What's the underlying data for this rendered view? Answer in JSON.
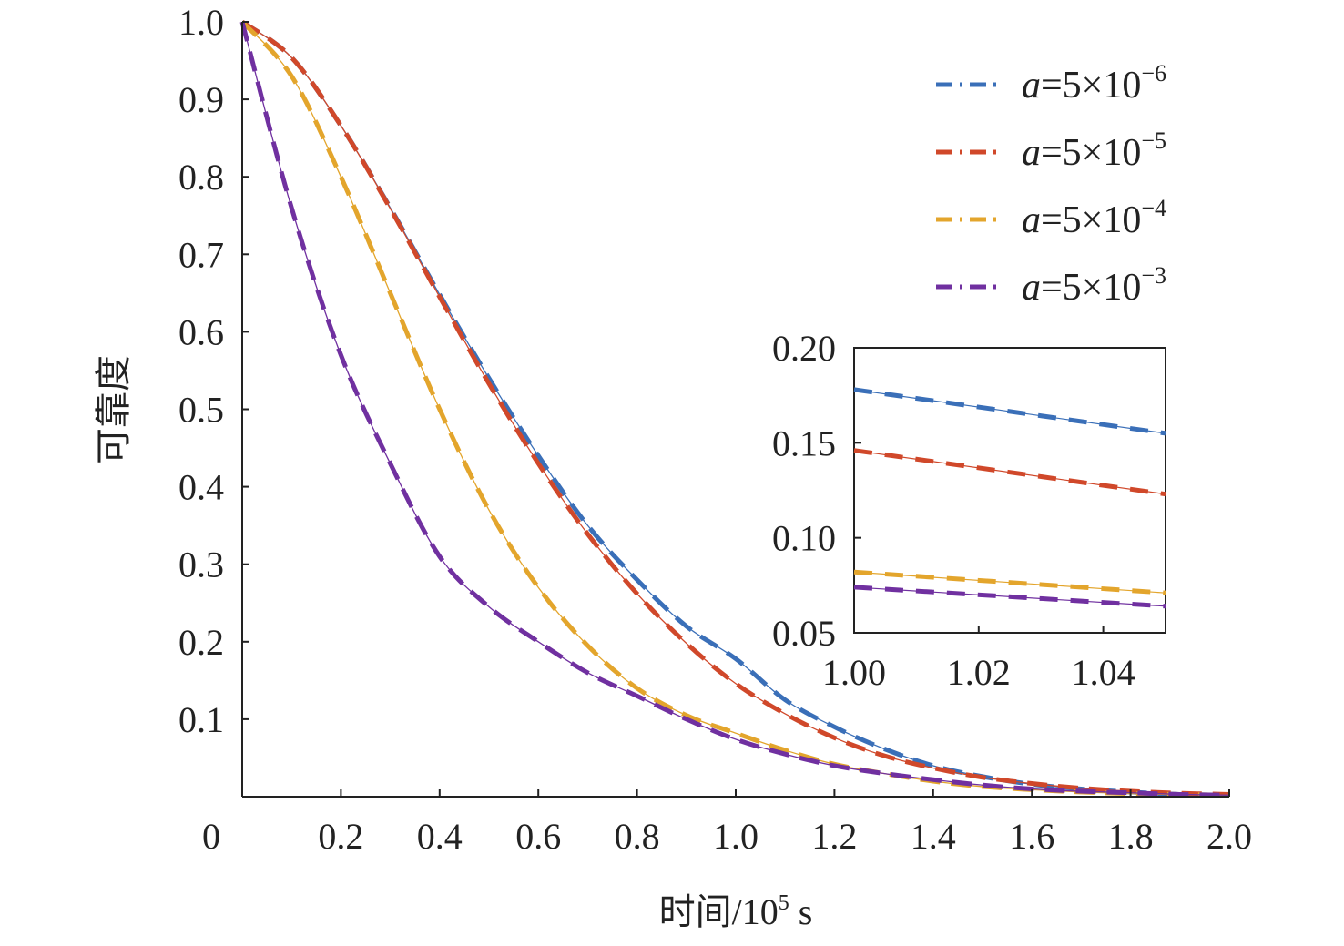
{
  "chart_data": {
    "type": "line",
    "title": "",
    "xlabel": "时间/10",
    "xlabel_sup": "5",
    "xlabel_unit": " s",
    "ylabel": "可靠度",
    "xlim": [
      0,
      2.0
    ],
    "ylim": [
      0,
      1.0
    ],
    "xticks": [
      "0",
      "0.2",
      "0.4",
      "0.6",
      "0.8",
      "1.0",
      "1.2",
      "1.4",
      "1.6",
      "1.8",
      "2.0"
    ],
    "yticks": [
      "0.1",
      "0.2",
      "0.3",
      "0.4",
      "0.5",
      "0.6",
      "0.7",
      "0.8",
      "0.9",
      "1.0"
    ],
    "grid": false,
    "legend_position": "top-right",
    "x": [
      0,
      0.1,
      0.2,
      0.3,
      0.4,
      0.5,
      0.6,
      0.7,
      0.8,
      0.9,
      1.0,
      1.1,
      1.2,
      1.3,
      1.4,
      1.5,
      1.6,
      1.7,
      1.8,
      1.9,
      2.0
    ],
    "series": [
      {
        "name": "a=5×10",
        "exp": "−6",
        "color": "#3a6fb8",
        "values": [
          1,
          0.954,
          0.866,
          0.76,
          0.648,
          0.54,
          0.44,
          0.35,
          0.28,
          0.22,
          0.178,
          0.125,
          0.09,
          0.062,
          0.04,
          0.026,
          0.016,
          0.01,
          0.006,
          0.003,
          0.002
        ]
      },
      {
        "name": "a=5×10",
        "exp": "−5",
        "color": "#d0482a",
        "values": [
          1,
          0.954,
          0.866,
          0.759,
          0.645,
          0.533,
          0.43,
          0.339,
          0.262,
          0.198,
          0.146,
          0.107,
          0.076,
          0.053,
          0.037,
          0.025,
          0.017,
          0.011,
          0.007,
          0.0045,
          0.003
        ]
      },
      {
        "name": "a=5×10",
        "exp": "−4",
        "color": "#e3a52c",
        "values": [
          1,
          0.93,
          0.8,
          0.65,
          0.5,
          0.37,
          0.27,
          0.195,
          0.14,
          0.105,
          0.082,
          0.06,
          0.042,
          0.03,
          0.02,
          0.013,
          0.009,
          0.006,
          0.004,
          0.003,
          0.002
        ]
      },
      {
        "name": "a=5×10",
        "exp": "−3",
        "color": "#7030a0",
        "values": [
          1,
          0.76,
          0.57,
          0.43,
          0.31,
          0.245,
          0.2,
          0.16,
          0.13,
          0.1,
          0.074,
          0.055,
          0.04,
          0.03,
          0.022,
          0.015,
          0.01,
          0.007,
          0.005,
          0.003,
          0.002
        ]
      }
    ],
    "inset": {
      "xlim": [
        1.0,
        1.05
      ],
      "ylim": [
        0.05,
        0.2
      ],
      "xticks": [
        "1.00",
        "1.02",
        "1.04"
      ],
      "yticks": [
        "0.05",
        "0.10",
        "0.15",
        "0.20"
      ],
      "x": [
        1.0,
        1.05
      ],
      "series_values": [
        [
          0.178,
          0.155
        ],
        [
          0.146,
          0.123
        ],
        [
          0.082,
          0.071
        ],
        [
          0.074,
          0.064
        ]
      ]
    }
  }
}
